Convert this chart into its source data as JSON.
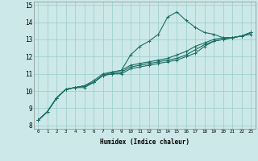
{
  "xlabel": "Humidex (Indice chaleur)",
  "xlim": [
    -0.5,
    23.5
  ],
  "ylim": [
    7.8,
    15.2
  ],
  "yticks": [
    8,
    9,
    10,
    11,
    12,
    13,
    14,
    15
  ],
  "xticks": [
    0,
    1,
    2,
    3,
    4,
    5,
    6,
    7,
    8,
    9,
    10,
    11,
    12,
    13,
    14,
    15,
    16,
    17,
    18,
    19,
    20,
    21,
    22,
    23
  ],
  "bg_color": "#cce8e8",
  "line_color": "#1a6e64",
  "grid_color": "#99cccc",
  "lines": [
    [
      8.3,
      8.8,
      9.6,
      10.1,
      10.2,
      10.2,
      10.5,
      10.9,
      11.1,
      11.2,
      12.1,
      12.6,
      12.9,
      13.3,
      14.3,
      14.6,
      14.1,
      13.7,
      13.4,
      13.3,
      13.1,
      13.1,
      13.2,
      13.4
    ],
    [
      8.3,
      8.8,
      9.6,
      10.1,
      10.2,
      10.3,
      10.6,
      11.0,
      11.1,
      11.2,
      11.5,
      11.6,
      11.7,
      11.8,
      11.9,
      12.1,
      12.3,
      12.6,
      12.8,
      13.0,
      13.1,
      13.1,
      13.2,
      13.4
    ],
    [
      8.3,
      8.8,
      9.6,
      10.1,
      10.2,
      10.3,
      10.5,
      10.9,
      11.0,
      11.1,
      11.4,
      11.5,
      11.6,
      11.7,
      11.8,
      11.9,
      12.1,
      12.4,
      12.7,
      12.9,
      13.0,
      13.1,
      13.2,
      13.4
    ],
    [
      8.3,
      8.8,
      9.6,
      10.1,
      10.2,
      10.3,
      10.5,
      10.9,
      11.0,
      11.0,
      11.3,
      11.4,
      11.5,
      11.6,
      11.7,
      11.8,
      12.0,
      12.2,
      12.6,
      12.9,
      13.0,
      13.1,
      13.2,
      13.3
    ]
  ]
}
